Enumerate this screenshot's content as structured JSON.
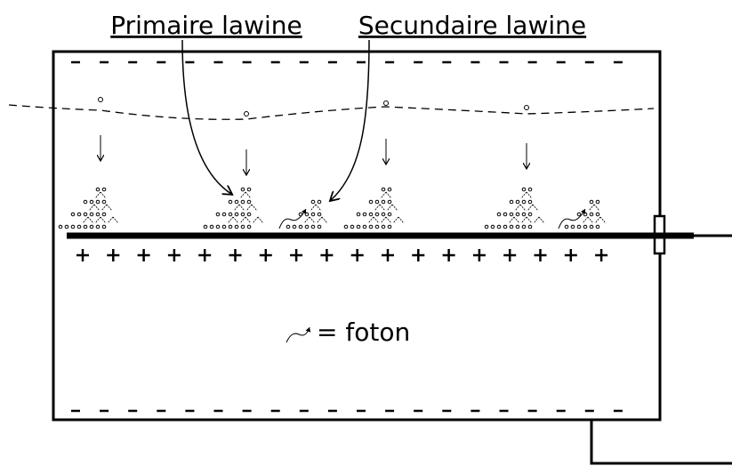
{
  "labels": {
    "primary": "Primaire lawine",
    "secondary": "Secundaire lawine"
  },
  "legend": {
    "photon": "= foton"
  }
}
